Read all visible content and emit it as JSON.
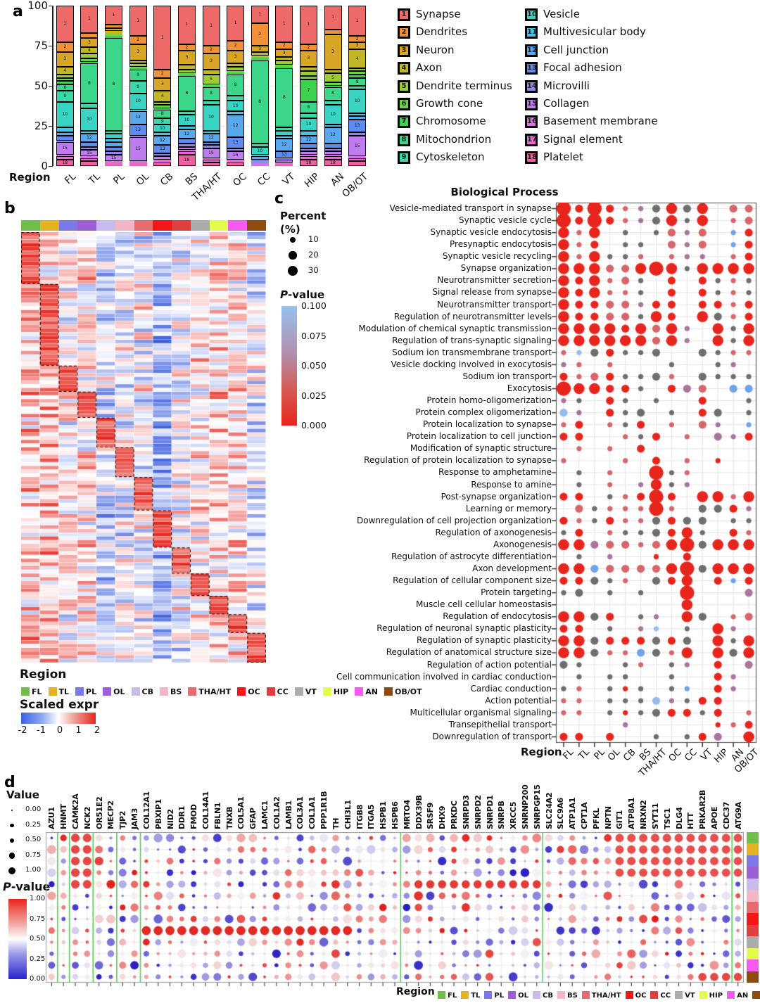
{
  "regions": [
    {
      "label": "FL",
      "color": "#6FBF4A"
    },
    {
      "label": "TL",
      "color": "#E6B221"
    },
    {
      "label": "PL",
      "color": "#7B78E8"
    },
    {
      "label": "OL",
      "color": "#9C5FD6"
    },
    {
      "label": "CB",
      "color": "#C9BCEC"
    },
    {
      "label": "BS",
      "color": "#F2B7C6"
    },
    {
      "label": "THA/HT",
      "color": "#E66A6E"
    },
    {
      "label": "OC",
      "color": "#F51718"
    },
    {
      "label": "CC",
      "color": "#E03F40"
    },
    {
      "label": "VT",
      "color": "#ACACAC"
    },
    {
      "label": "HIP",
      "color": "#E4FB4C"
    },
    {
      "label": "AN",
      "color": "#F55BF0"
    },
    {
      "label": "OB/OT",
      "color": "#8F4B0E"
    }
  ],
  "chart_data": {
    "panel_a": {
      "type": "bar",
      "stacked": true,
      "panel_label": "a",
      "axis_label": "Region",
      "y_ticks": [
        "0",
        "25",
        "50",
        "75",
        "100"
      ],
      "ylim": [
        0,
        100
      ],
      "categories": [
        {
          "id": "1",
          "label": "Synapse",
          "color": "#EE6A68"
        },
        {
          "id": "2",
          "label": "Dendrites",
          "color": "#F0913A"
        },
        {
          "id": "3",
          "label": "Neuron",
          "color": "#D8A527"
        },
        {
          "id": "4",
          "label": "Axon",
          "color": "#C2B722"
        },
        {
          "id": "5",
          "label": "Dendrite terminus",
          "color": "#9CCB33"
        },
        {
          "id": "6",
          "label": "Growth cone",
          "color": "#66D348"
        },
        {
          "id": "7",
          "label": "Chromosome",
          "color": "#3ED04F"
        },
        {
          "id": "8",
          "label": "Mitochondrion",
          "color": "#3BD689"
        },
        {
          "id": "9",
          "label": "Cytoskeleton",
          "color": "#3BD8AA"
        },
        {
          "id": "10",
          "label": "Vesicle",
          "color": "#39D3C4"
        },
        {
          "id": "11",
          "label": "Multivesicular body",
          "color": "#47C4E6"
        },
        {
          "id": "12",
          "label": "Cell junction",
          "color": "#58A8EE"
        },
        {
          "id": "13",
          "label": "Focal adhesion",
          "color": "#5E8BF0"
        },
        {
          "id": "14",
          "label": "Microvilli",
          "color": "#9184EC"
        },
        {
          "id": "15",
          "label": "Collagen",
          "color": "#BF7BF0"
        },
        {
          "id": "16",
          "label": "Basement membrane",
          "color": "#DB70E2"
        },
        {
          "id": "17",
          "label": "Signal element",
          "color": "#F164D8"
        },
        {
          "id": "18",
          "label": "Platelet",
          "color": "#ED5F9E"
        }
      ],
      "region_order": [
        "FL",
        "TL",
        "PL",
        "OL",
        "CB",
        "BS",
        "THA/HT",
        "OC",
        "CC",
        "VT",
        "HIP",
        "AN",
        "OB/OT"
      ],
      "stacks": [
        [
          23,
          6,
          9,
          5,
          2,
          2,
          2,
          4,
          7,
          16,
          3,
          2,
          3,
          1,
          8,
          1,
          2,
          4
        ],
        [
          17,
          3,
          6,
          4,
          3,
          2,
          1,
          25,
          3,
          14,
          2,
          5,
          3,
          2,
          4,
          1,
          2,
          3
        ],
        [
          12,
          2,
          2,
          1,
          1,
          1,
          1,
          58,
          2,
          3,
          2,
          3,
          3,
          2,
          4,
          1,
          1,
          1
        ],
        [
          19,
          5,
          10,
          2,
          2,
          1,
          1,
          7,
          8,
          10,
          1,
          8,
          7,
          1,
          15,
          1,
          1,
          1
        ],
        [
          40,
          5,
          8,
          7,
          2,
          2,
          1,
          5,
          4,
          5,
          2,
          6,
          5,
          2,
          2,
          1,
          1,
          2
        ],
        [
          24,
          4,
          9,
          3,
          2,
          1,
          1,
          22,
          2,
          7,
          2,
          6,
          3,
          2,
          2,
          1,
          2,
          7
        ],
        [
          25,
          5,
          10,
          3,
          6,
          1,
          1,
          8,
          3,
          16,
          2,
          5,
          2,
          2,
          6,
          1,
          2,
          2
        ],
        [
          22,
          6,
          8,
          2,
          3,
          1,
          1,
          13,
          3,
          7,
          2,
          14,
          7,
          2,
          5,
          1,
          1,
          2
        ],
        [
          11,
          14,
          4,
          2,
          1,
          1,
          1,
          52,
          2,
          5,
          1,
          2,
          1,
          1,
          1,
          1,
          0,
          0
        ],
        [
          23,
          4,
          5,
          2,
          3,
          1,
          1,
          37,
          2,
          3,
          2,
          8,
          4,
          1,
          2,
          1,
          0,
          1
        ],
        [
          24,
          4,
          10,
          3,
          3,
          2,
          14,
          7,
          3,
          8,
          3,
          5,
          3,
          2,
          2,
          1,
          2,
          4
        ],
        [
          15,
          3,
          22,
          2,
          6,
          2,
          1,
          8,
          3,
          12,
          2,
          10,
          3,
          2,
          2,
          1,
          2,
          4
        ],
        [
          19,
          4,
          4,
          12,
          2,
          2,
          2,
          5,
          2,
          15,
          2,
          2,
          8,
          2,
          13,
          1,
          2,
          3
        ]
      ]
    },
    "panel_b": {
      "type": "heatmap",
      "panel_label": "b",
      "legend_region_title": "Region",
      "scale_title": "Scaled expr",
      "scale_ticks": [
        "-2",
        "-1",
        "0",
        "1",
        "2"
      ],
      "columns": [
        "FL",
        "TL",
        "PL",
        "OL",
        "CB",
        "BS",
        "THA/HT",
        "OC",
        "CC",
        "VT",
        "HIP",
        "AN",
        "OB/OT"
      ],
      "row_blocks": [
        14,
        22,
        7,
        7,
        8,
        8,
        9,
        10,
        7,
        6,
        5,
        5,
        8
      ],
      "column_bias": [
        0.55,
        0.55,
        0.15,
        0.25,
        -0.55,
        -0.25,
        -0.15,
        -0.95,
        -0.25,
        0.15,
        0.35,
        0.3,
        -0.35
      ],
      "colormap": {
        "low": "#4169E1",
        "mid": "#FFFFFF",
        "high": "#E8251C"
      }
    },
    "panel_c": {
      "type": "scatter",
      "panel_label": "c",
      "title": "Biological Process",
      "axis_label": "Region",
      "columns": [
        "FL",
        "TL",
        "PL",
        "OL",
        "CB",
        "BS",
        "THA/HT",
        "OC",
        "CC",
        "VT",
        "HIP",
        "AN",
        "OB/OT"
      ],
      "percent_title": "Percent",
      "percent_unit": "(%)",
      "percent_sizes": [
        "10",
        "20",
        "30"
      ],
      "pvalue_p": "P",
      "pvalue_rest": "-value",
      "pvalue_ticks": [
        "0.100",
        "0.075",
        "0.050",
        "0.025",
        "0.000"
      ],
      "rows": [
        "Vesicle-mediated transport in synapse",
        "Synaptic vesicle cycle",
        "Synaptic vesicle endocytosis",
        "Presynaptic endocytosis",
        "Synaptic vesicle recycling",
        "Synapse organization",
        "Neurotransmitter secretion",
        "Signal release from synapse",
        "Neurotransmitter transport",
        "Regulation of neurotransmitter levels",
        "Modulation of chemical synaptic transmission",
        "Regulation of trans-synaptic signaling",
        "Sodium ion transmembrane transport",
        "Vesicle docking involved in exocytosis",
        "Sodium ion transport",
        "Exocytosis",
        "Protein homo-oligomerization",
        "Protein complex oligomerization",
        "Protein localization to synapse",
        "Protein localization to cell junction",
        "Modification of synaptic structure",
        "Regulation of protein localization to synapse",
        "Response to amphetamine",
        "Response to amine",
        "Post-synapse organization",
        "Learning or memory",
        "Downregulation of cell projection organization",
        "Regulation of axonogenesis",
        "Axonogenesis",
        "Regulation of astrocyte differentiation",
        "Axon development",
        "Regulation of cellular component size",
        "Protein targeting",
        "Muscle cell cellular homeostasis",
        "Regulation of endocytosis",
        "Regulation of neuronal synaptic plasticity",
        "Regulation of synaptic plasticity",
        "Regulation of anatomical structure size",
        "Regulation of action potential",
        "Cell communication involved in cardiac conduction",
        "Cardiac conduction",
        "Action potential",
        "Multicellular organismal signaling",
        "Transepithelial transport",
        "Downregulation of transport"
      ],
      "dots": [
        "R4 R2 R4 R2 r1 P1 G2 R3 G2 R3 . r2 r2",
        "R4 R2 R4 R2 r1 P1 G2 R3 G1 R3 . r1 r2",
        "R3 r1 R3 . G1 . G1 r2 P1 r2 . B1 R2",
        "R3 r1 R2 . G1 G1 . r2 P1 r2 . B1 R2",
        "R3 r1 R3 G1 G1 r1 . r1 P1 P1 . r1 R2",
        "R3 R3 R3 r2 r2 R3 R4 R3 G1 R3 R3 R3 R3",
        "R3 R2 R3 r1 r2 G1 . R2 . R2 G1 r1 G1",
        "R3 R2 R3 r1 r1 G1 . R2 . R2 G1 r1 G1",
        "R3 R2 R2 r2 r2 P1 R2 R2 . R2 R2 r1 R2",
        "R3 R2 R2 r2 r2 G1 R3 R2 . R3 G2 r1 R2",
        "R3 R3 R3 R3 R2 R3 r2 R3 P1 . R3 G1 R3",
        "R3 R3 R3 R3 R3 R3 r2 R3 P1 . R3 G1 R3",
        "r1 L1 G2 R2 G1 G1 G2 . . G2 G1 r1 r1",
        "P1 r1 . r1 . . . G1 . . G1 P1 .",
        "R2 r1 r2 R2 G1 G1 G2 r1 . G2 G1 G1 G1",
        "R4 R3 R3 R2 R2 G1 . R2 P2 r2 . B2 B2",
        "P1 G1 . R2 G1 . G1 . . R2 . . G1",
        "L2 P1 . R2 G1 G2 . G1 . R2 G2 . G1",
        "r1 R2 . r1 G1 R2 . r1 . r2 P1 . B1",
        "R2 R2 . . r1 G1 R2 . r1 . P2 P1 R2",
        ". r1 . r1 . R2 . . . . . . .",
        "r1 . . . r1 . R2 . r1 . R1 . .",
        ". G1 . r1 . . R4 G1 r1 . . . .",
        ". G1 . r1 . P1 R3 G1 P1 . . . .",
        "R2 R2 . G1 r1 R2 R4 R2 . R3 R3 r1 R3",
        ". r2 G1 r1 r1 r1 R4 r1 . G2 G2 R2 P1",
        "R2 r1 G1 R2 r1 r1 G2 R2 G2 G2 . G1 G1",
        "G1 R2 . r1 G1 G1 G2 R2 R3 G1 . R2 r1",
        "R3 R3 P2 r2 r2 r1 r2 R3 R4 G2 R3 R3 R3",
        ". G1 . P1 . . R1 . R2 . . . .",
        "R3 R3 B2 r2 r2 r2 r2 R3 R4 G2 R3 R3 R3",
        "R2 R2 G2 G1 r1 . G2 R2 R3 . R2 B1 R2",
        "G1 G2 . G1 . G1 . . R4 . . . P2",
        ". . . . . . . . R3 . . . .",
        "R3 R3 G2 R2 . G1 P1 . R3 G2 . r1 r2",
        "R2 R2 . G1 . P1 L1 . G1 . R3 P1 .",
        "R3 R3 G2 R2 R2 R2 G2 R2 G2 . R3 G1 R3",
        "R3 R3 G2 r1 r1 B2 G2 r1 R3 . R3 G2 R3",
        "G2 G1 . . G1 r1 . G1 P1 . R2 . P2",
        ". G1 . G1 G1 . . G1 . . R2 P1 .",
        "G1 r1 . G1 R1 G1 . G1 B1 . R2 P1 .",
        "r1 r1 . G1 G1 G1 L2 P1 G1 R2 R2 . .",
        "r1 r1 . G1 R1 G1 G2 R2 R2 G1 R2 . r1",
        ". . . . P1 . . . . . R1 r1 R2",
        "R2 R2 . R2 . . G1 . G1 R2 P2 . R3"
      ],
      "dot_colors": {
        "R": "#E8251C",
        "r": "#D7666B",
        "G": "#6E6E6E",
        "P": "#A9749D",
        "B": "#6FA3EA",
        "L": "#93BBF0",
        "p": "#AF93C9"
      }
    },
    "panel_d": {
      "type": "scatter",
      "panel_label": "d",
      "value_title": "Value",
      "value_items": [
        "0.00",
        "0.25",
        "0.50",
        "0.75",
        "1.00"
      ],
      "pvalue_p": "P",
      "pvalue_rest": "-value",
      "pvalue_ticks": [
        "1.00",
        "0.75",
        "0.50",
        "0.25",
        "0.00"
      ],
      "axis_label": "Region",
      "genes": [
        "AZU1",
        "HNMT",
        "CAMK2A",
        "NCK2",
        "OR51E2",
        "MECP2",
        "TJP2",
        "JAM3",
        "COL12A1",
        "PBXIP1",
        "NID2",
        "DDR1",
        "FMOD",
        "COL14A1",
        "FBLN1",
        "TNXB",
        "COL5A1",
        "GFAP",
        "LAMC1",
        "COL1A2",
        "LAMB1",
        "COL3A1",
        "COL1A1",
        "PPP1R1B",
        "TH",
        "CHI3L1",
        "ITGB8",
        "ITGA5",
        "HSPB1",
        "HSPB6",
        "MRTO4",
        "DDX39B",
        "SRSF9",
        "DHX9",
        "PRKDC",
        "SNRPD3",
        "SNRPD2",
        "SNRPD1",
        "SNRPB",
        "XRCC5",
        "SNRNP200",
        "SNRPGP15",
        "SLC24A2",
        "SLC9A6",
        "ATP1A1",
        "CPT1A",
        "PFKL",
        "NPTN",
        "GIT1",
        "ATP8A1",
        "NRXN2",
        "SYT11",
        "TSC1",
        "DLG4",
        "HTT",
        "PRKAR2B",
        "APOE",
        "CDC37",
        "ATG9A"
      ],
      "row_order": [
        "FL",
        "TL",
        "PL",
        "OL",
        "CB",
        "BS",
        "THA/HT",
        "OC",
        "CC",
        "VT",
        "HIP",
        "AN",
        "OB/OT"
      ],
      "separators_after": [
        1,
        2,
        4,
        6,
        8,
        30,
        42,
        58
      ],
      "hotspots": [
        {
          "r0": 8,
          "r1": 8,
          "c0": 8,
          "c1": 25,
          "v": 0.97,
          "s": 1.0
        },
        {
          "r0": 4,
          "r1": 4,
          "c0": 31,
          "c1": 41,
          "v": 0.93,
          "s": 0.9
        },
        {
          "r0": 0,
          "r1": 3,
          "c0": 48,
          "c1": 58,
          "v": 0.88,
          "s": 0.92
        },
        {
          "r0": 12,
          "r1": 12,
          "c0": 55,
          "c1": 58,
          "v": 0.9,
          "s": 0.9
        },
        {
          "r0": 0,
          "r1": 4,
          "c0": 2,
          "c1": 3,
          "v": 0.9,
          "s": 0.95
        }
      ]
    }
  }
}
